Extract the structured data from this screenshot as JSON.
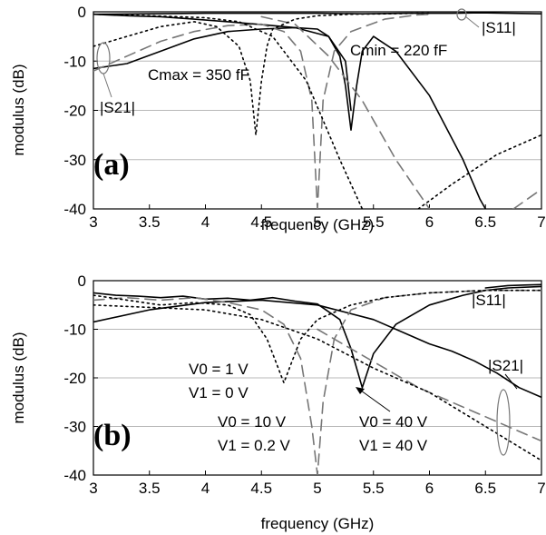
{
  "chart_data": [
    {
      "type": "line",
      "panel_tag": "(a)",
      "xlabel": "frequency (GHz)",
      "ylabel": "modulus (dB)",
      "xlim": [
        3,
        7
      ],
      "ylim": [
        -40,
        0
      ],
      "x_ticks": [
        "3",
        "3.5",
        "4",
        "4.5",
        "5",
        "5.5",
        "6",
        "6.5",
        "7"
      ],
      "y_ticks": [
        "0",
        "-10",
        "-20",
        "-30",
        "-40"
      ],
      "annotations": [
        "Cmax = 350 fF",
        "Cmin = 220 fF",
        "|S11|",
        "|S21|"
      ],
      "series": [
        {
          "stroke": "#000000",
          "dash": "",
          "x": [
            3.0,
            3.5,
            4.0,
            4.5,
            5.0,
            5.4,
            5.8,
            6.2,
            6.45,
            6.7,
            7.0
          ],
          "y": [
            -0.5,
            -0.4,
            -0.3,
            -0.3,
            -0.3,
            -0.4,
            -0.3,
            -0.3,
            -0.2,
            -0.3,
            -0.4
          ]
        },
        {
          "stroke": "#000000",
          "dash": "",
          "x": [
            3.0,
            3.3,
            3.6,
            3.9,
            4.2,
            4.5,
            4.8,
            5.0,
            5.1,
            5.2,
            5.25,
            5.3,
            5.35,
            5.4,
            5.5,
            5.7,
            6.0,
            6.3,
            6.45,
            6.5
          ],
          "y": [
            -11.5,
            -10.5,
            -8.0,
            -5.5,
            -4.0,
            -3.5,
            -3.2,
            -3.5,
            -5.0,
            -9.0,
            -15.0,
            -24.0,
            -15.0,
            -8.0,
            -5.0,
            -8.0,
            -17.0,
            -30.0,
            -38.0,
            -40.0
          ]
        },
        {
          "stroke": "#000000",
          "dash": "",
          "x": [
            3.0,
            3.3,
            3.6,
            3.9,
            4.2,
            4.5,
            4.8,
            5.1,
            5.25,
            5.3
          ],
          "y": [
            -0.5,
            -0.8,
            -1.0,
            -1.5,
            -2.0,
            -2.6,
            -3.2,
            -5.0,
            -10.0,
            -20.0
          ]
        },
        {
          "stroke": "#777777",
          "dash": "12,7",
          "x": [
            3.0,
            3.3,
            3.6,
            3.9,
            4.2,
            4.5,
            4.7,
            4.85,
            4.95,
            5.0,
            5.05,
            5.15,
            5.3,
            5.6,
            5.9,
            6.0
          ],
          "y": [
            -12.0,
            -9.0,
            -6.0,
            -4.0,
            -2.8,
            -2.5,
            -4.0,
            -8.0,
            -18.0,
            -40.0,
            -18.0,
            -8.0,
            -4.0,
            -1.5,
            -0.6,
            -0.5
          ]
        },
        {
          "stroke": "#777777",
          "dash": "12,7",
          "x": [
            4.5,
            4.8,
            5.1,
            5.4,
            5.7,
            6.0
          ],
          "y": [
            -1.0,
            -2.5,
            -9.0,
            -18.0,
            -30.0,
            -40.0
          ]
        },
        {
          "stroke": "#777777",
          "dash": "12,7",
          "x": [
            6.75,
            7.0
          ],
          "y": [
            -40.0,
            -36.0
          ]
        },
        {
          "stroke": "#000000",
          "dash": "2,4",
          "x": [
            3.0,
            3.3,
            3.6,
            3.9,
            4.1,
            4.3,
            4.4,
            4.45,
            4.5,
            4.55,
            4.6,
            4.8,
            5.0,
            5.3,
            5.6,
            5.9,
            6.0
          ],
          "y": [
            -7.0,
            -5.0,
            -3.0,
            -2.0,
            -3.0,
            -7.0,
            -14.0,
            -25.0,
            -14.0,
            -7.0,
            -3.5,
            -1.5,
            -0.8,
            -0.5,
            -0.4,
            -0.3,
            -0.3
          ]
        },
        {
          "stroke": "#000000",
          "dash": "2,4",
          "x": [
            3.0,
            3.5,
            4.0,
            4.3,
            4.6,
            4.9,
            5.2,
            5.4
          ],
          "y": [
            -0.5,
            -0.8,
            -1.2,
            -2.0,
            -5.0,
            -14.0,
            -30.0,
            -40.0
          ]
        },
        {
          "stroke": "#000000",
          "dash": "2,4",
          "x": [
            5.9,
            6.2,
            6.6,
            7.0
          ],
          "y": [
            -40.0,
            -35.0,
            -29.0,
            -25.0
          ]
        }
      ]
    },
    {
      "type": "line",
      "panel_tag": "(b)",
      "xlabel": "frequency (GHz)",
      "ylabel": "modulus (dB)",
      "xlim": [
        3,
        7
      ],
      "ylim": [
        -40,
        0
      ],
      "x_ticks": [
        "3",
        "3.5",
        "4",
        "4.5",
        "5",
        "5.5",
        "6",
        "6.5",
        "7"
      ],
      "y_ticks": [
        "0",
        "-10",
        "-20",
        "-30",
        "-40"
      ],
      "annotations": [
        "|S11|",
        "|S21|",
        "V0 = 1 V",
        "V1 = 0 V",
        "V0 = 10 V",
        "V1 = 0.2 V",
        "V0 = 40 V",
        "V1 = 40 V"
      ],
      "series": [
        {
          "stroke": "#000000",
          "dash": "",
          "x": [
            3.0,
            3.2,
            3.4,
            3.6,
            3.8,
            4.0,
            4.2,
            4.4,
            4.6,
            4.8,
            5.0,
            5.2,
            5.3,
            5.4,
            5.5,
            5.7,
            6.0,
            6.3,
            6.5,
            6.7,
            7.0
          ],
          "y": [
            -2.5,
            -3.0,
            -3.2,
            -3.5,
            -3.2,
            -3.8,
            -3.6,
            -4.0,
            -3.5,
            -4.2,
            -4.8,
            -8.0,
            -14.0,
            -22.0,
            -15.0,
            -9.0,
            -5.0,
            -3.0,
            -2.0,
            -1.5,
            -1.2
          ]
        },
        {
          "stroke": "#000000",
          "dash": "",
          "x": [
            3.0,
            3.5,
            4.0,
            4.5,
            5.0,
            5.5,
            5.8,
            6.0,
            6.2,
            6.4,
            6.6,
            6.8,
            7.0
          ],
          "y": [
            -8.5,
            -6.0,
            -4.5,
            -4.0,
            -5.0,
            -8.0,
            -11.0,
            -13.0,
            -14.5,
            -16.5,
            -19.0,
            -22.0,
            -24.0
          ]
        },
        {
          "stroke": "#000000",
          "dash": "",
          "x": [
            6.5,
            6.7,
            6.85,
            7.0
          ],
          "y": [
            -1.5,
            -1.0,
            -0.9,
            -0.8
          ]
        },
        {
          "stroke": "#777777",
          "dash": "12,7",
          "x": [
            3.0,
            3.3,
            3.6,
            3.9,
            4.2,
            4.5,
            4.7,
            4.85,
            4.95,
            5.0,
            5.05,
            5.15,
            5.3,
            5.6,
            6.0,
            6.5,
            7.0
          ],
          "y": [
            -4.0,
            -3.5,
            -4.0,
            -3.5,
            -4.5,
            -6.0,
            -9.0,
            -16.0,
            -30.0,
            -40.0,
            -25.0,
            -12.0,
            -6.0,
            -3.5,
            -2.5,
            -2.0,
            -2.0
          ]
        },
        {
          "stroke": "#777777",
          "dash": "12,7",
          "x": [
            5.0,
            5.3,
            5.6,
            5.9,
            6.2,
            6.5,
            6.8,
            7.0
          ],
          "y": [
            -10.0,
            -14.0,
            -18.0,
            -22.0,
            -25.0,
            -28.0,
            -31.0,
            -33.0
          ]
        },
        {
          "stroke": "#000000",
          "dash": "2,4",
          "x": [
            3.0,
            3.3,
            3.6,
            3.9,
            4.2,
            4.4,
            4.55,
            4.65,
            4.7,
            4.75,
            4.85,
            5.0,
            5.3,
            5.6,
            6.0,
            6.5,
            7.0
          ],
          "y": [
            -3.0,
            -4.0,
            -5.0,
            -4.5,
            -5.0,
            -7.0,
            -12.0,
            -18.0,
            -21.0,
            -18.0,
            -12.0,
            -8.0,
            -5.0,
            -3.5,
            -2.5,
            -2.0,
            -2.0
          ]
        },
        {
          "stroke": "#000000",
          "dash": "2,4",
          "x": [
            3.0,
            3.5,
            4.0,
            4.5,
            5.0,
            5.5,
            6.0,
            6.5,
            7.0
          ],
          "y": [
            -5.0,
            -5.5,
            -6.0,
            -8.0,
            -12.0,
            -18.0,
            -23.0,
            -30.0,
            -37.0
          ]
        }
      ]
    }
  ]
}
